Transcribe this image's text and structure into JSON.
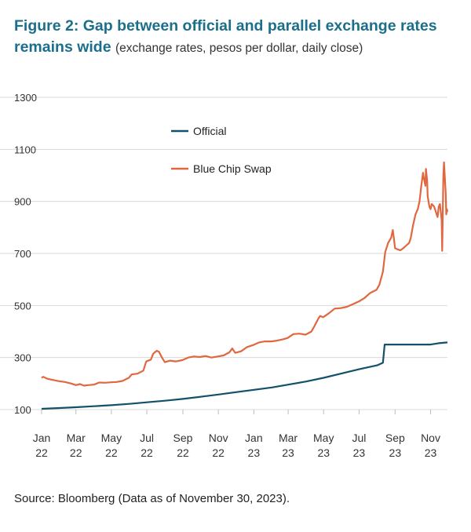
{
  "title": "Figure 2: Gap between official and parallel exchange rates remains wide",
  "subtitle": "(exchange rates, pesos per dollar, daily close)",
  "source": "Source: Bloomberg (Data as of November 30, 2023).",
  "colors": {
    "title": "#1b6f8a",
    "official": "#12506b",
    "blue_chip_swap": "#e0673f",
    "grid": "#d9d9d9"
  },
  "chart_data": {
    "type": "line",
    "title": "Figure 2: Gap between official and parallel exchange rates remains wide",
    "subtitle": "(exchange rates, pesos per dollar, daily close)",
    "xlabel": "",
    "ylabel": "",
    "xlim": [
      "2022-01-01",
      "2023-11-30"
    ],
    "ylim": [
      100,
      1300
    ],
    "yticks": [
      100,
      300,
      500,
      700,
      900,
      1100,
      1300
    ],
    "xticks": [
      {
        "date": "2022-01-01",
        "label": [
          "Jan",
          "22"
        ]
      },
      {
        "date": "2022-03-01",
        "label": [
          "Mar",
          "22"
        ]
      },
      {
        "date": "2022-05-01",
        "label": [
          "May",
          "22"
        ]
      },
      {
        "date": "2022-07-01",
        "label": [
          "Jul",
          "22"
        ]
      },
      {
        "date": "2022-09-01",
        "label": [
          "Sep",
          "22"
        ]
      },
      {
        "date": "2022-11-01",
        "label": [
          "Nov",
          "22"
        ]
      },
      {
        "date": "2023-01-01",
        "label": [
          "Jan",
          "23"
        ]
      },
      {
        "date": "2023-03-01",
        "label": [
          "Mar",
          "23"
        ]
      },
      {
        "date": "2023-05-01",
        "label": [
          "May",
          "23"
        ]
      },
      {
        "date": "2023-07-01",
        "label": [
          "Jul",
          "23"
        ]
      },
      {
        "date": "2023-09-01",
        "label": [
          "Sep",
          "23"
        ]
      },
      {
        "date": "2023-11-01",
        "label": [
          "Nov",
          "23"
        ]
      }
    ],
    "grid": true,
    "legend_position": "top-center",
    "series": [
      {
        "name": "Official",
        "color": "#12506b",
        "points": [
          [
            "2022-01-01",
            103
          ],
          [
            "2022-02-01",
            106
          ],
          [
            "2022-03-01",
            109
          ],
          [
            "2022-04-01",
            113
          ],
          [
            "2022-05-01",
            117
          ],
          [
            "2022-06-01",
            122
          ],
          [
            "2022-07-01",
            128
          ],
          [
            "2022-08-01",
            134
          ],
          [
            "2022-09-01",
            141
          ],
          [
            "2022-10-01",
            149
          ],
          [
            "2022-11-01",
            158
          ],
          [
            "2022-12-01",
            167
          ],
          [
            "2023-01-01",
            176
          ],
          [
            "2023-02-01",
            185
          ],
          [
            "2023-03-01",
            196
          ],
          [
            "2023-04-01",
            208
          ],
          [
            "2023-05-01",
            222
          ],
          [
            "2023-06-01",
            239
          ],
          [
            "2023-07-01",
            255
          ],
          [
            "2023-08-01",
            270
          ],
          [
            "2023-08-11",
            280
          ],
          [
            "2023-08-14",
            350
          ],
          [
            "2023-09-01",
            350
          ],
          [
            "2023-10-01",
            350
          ],
          [
            "2023-11-01",
            350
          ],
          [
            "2023-11-15",
            355
          ],
          [
            "2023-11-30",
            358
          ]
        ]
      },
      {
        "name": "Blue Chip Swap",
        "color": "#e0673f",
        "points": [
          [
            "2022-01-01",
            222
          ],
          [
            "2022-01-04",
            226
          ],
          [
            "2022-01-10",
            219
          ],
          [
            "2022-01-20",
            214
          ],
          [
            "2022-01-31",
            209
          ],
          [
            "2022-02-10",
            206
          ],
          [
            "2022-02-21",
            200
          ],
          [
            "2022-03-01",
            194
          ],
          [
            "2022-03-08",
            198
          ],
          [
            "2022-03-15",
            192
          ],
          [
            "2022-03-22",
            194
          ],
          [
            "2022-04-01",
            196
          ],
          [
            "2022-04-10",
            204
          ],
          [
            "2022-04-20",
            203
          ],
          [
            "2022-04-30",
            205
          ],
          [
            "2022-05-10",
            206
          ],
          [
            "2022-05-20",
            210
          ],
          [
            "2022-05-31",
            222
          ],
          [
            "2022-06-05",
            235
          ],
          [
            "2022-06-15",
            238
          ],
          [
            "2022-06-25",
            250
          ],
          [
            "2022-06-30",
            285
          ],
          [
            "2022-07-08",
            292
          ],
          [
            "2022-07-12",
            315
          ],
          [
            "2022-07-18",
            326
          ],
          [
            "2022-07-22",
            322
          ],
          [
            "2022-07-27",
            300
          ],
          [
            "2022-08-01",
            282
          ],
          [
            "2022-08-10",
            288
          ],
          [
            "2022-08-20",
            285
          ],
          [
            "2022-08-31",
            290
          ],
          [
            "2022-09-10",
            300
          ],
          [
            "2022-09-20",
            304
          ],
          [
            "2022-09-30",
            302
          ],
          [
            "2022-10-10",
            306
          ],
          [
            "2022-10-20",
            300
          ],
          [
            "2022-10-31",
            304
          ],
          [
            "2022-11-10",
            308
          ],
          [
            "2022-11-20",
            320
          ],
          [
            "2022-11-25",
            335
          ],
          [
            "2022-11-30",
            318
          ],
          [
            "2022-12-10",
            324
          ],
          [
            "2022-12-20",
            340
          ],
          [
            "2022-12-31",
            348
          ],
          [
            "2023-01-10",
            358
          ],
          [
            "2023-01-20",
            362
          ],
          [
            "2023-01-31",
            362
          ],
          [
            "2023-02-10",
            365
          ],
          [
            "2023-02-20",
            370
          ],
          [
            "2023-02-28",
            375
          ],
          [
            "2023-03-10",
            390
          ],
          [
            "2023-03-20",
            392
          ],
          [
            "2023-03-31",
            388
          ],
          [
            "2023-04-10",
            400
          ],
          [
            "2023-04-15",
            420
          ],
          [
            "2023-04-22",
            450
          ],
          [
            "2023-04-25",
            460
          ],
          [
            "2023-04-30",
            455
          ],
          [
            "2023-05-10",
            470
          ],
          [
            "2023-05-20",
            488
          ],
          [
            "2023-05-31",
            490
          ],
          [
            "2023-06-10",
            495
          ],
          [
            "2023-06-20",
            505
          ],
          [
            "2023-06-30",
            515
          ],
          [
            "2023-07-10",
            528
          ],
          [
            "2023-07-20",
            548
          ],
          [
            "2023-07-31",
            560
          ],
          [
            "2023-08-05",
            580
          ],
          [
            "2023-08-11",
            630
          ],
          [
            "2023-08-15",
            705
          ],
          [
            "2023-08-20",
            740
          ],
          [
            "2023-08-25",
            760
          ],
          [
            "2023-08-28",
            790
          ],
          [
            "2023-09-01",
            720
          ],
          [
            "2023-09-06",
            715
          ],
          [
            "2023-09-10",
            712
          ],
          [
            "2023-09-15",
            720
          ],
          [
            "2023-09-20",
            730
          ],
          [
            "2023-09-25",
            740
          ],
          [
            "2023-09-28",
            760
          ],
          [
            "2023-10-02",
            810
          ],
          [
            "2023-10-06",
            850
          ],
          [
            "2023-10-10",
            870
          ],
          [
            "2023-10-13",
            900
          ],
          [
            "2023-10-16",
            960
          ],
          [
            "2023-10-19",
            1010
          ],
          [
            "2023-10-20",
            995
          ],
          [
            "2023-10-23",
            960
          ],
          [
            "2023-10-24",
            1025
          ],
          [
            "2023-10-26",
            980
          ],
          [
            "2023-10-27",
            920
          ],
          [
            "2023-10-30",
            880
          ],
          [
            "2023-11-01",
            870
          ],
          [
            "2023-11-03",
            890
          ],
          [
            "2023-11-07",
            880
          ],
          [
            "2023-11-10",
            860
          ],
          [
            "2023-11-13",
            840
          ],
          [
            "2023-11-15",
            880
          ],
          [
            "2023-11-17",
            890
          ],
          [
            "2023-11-20",
            830
          ],
          [
            "2023-11-21",
            710
          ],
          [
            "2023-11-23",
            1000
          ],
          [
            "2023-11-24",
            1050
          ],
          [
            "2023-11-27",
            930
          ],
          [
            "2023-11-28",
            850
          ],
          [
            "2023-11-29",
            870
          ],
          [
            "2023-11-30",
            860
          ]
        ]
      }
    ]
  }
}
